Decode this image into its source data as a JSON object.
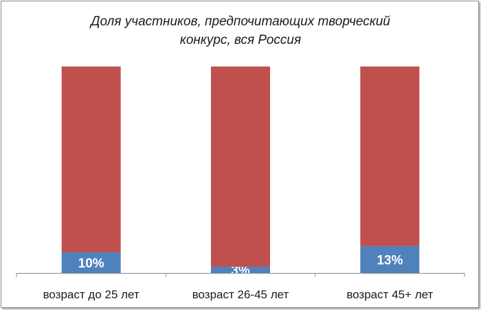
{
  "chart_data": {
    "type": "bar",
    "stacked": true,
    "percent_stacked": true,
    "title_lines": [
      "Доля участников, предпочитающих творческий",
      "конкурс, вся Россия"
    ],
    "categories": [
      "возраст до 25 лет",
      "возраст 26-45 лет",
      "возраст 45+ лет"
    ],
    "series": [
      {
        "values": [
          10,
          3,
          13
        ],
        "color": "#4f81bd",
        "data_labels": [
          "10%",
          "3%",
          "13%"
        ]
      },
      {
        "values": [
          90,
          97,
          87
        ],
        "color": "#c0504d"
      }
    ],
    "ylim": [
      0,
      100
    ],
    "legend": "none",
    "grid": false
  }
}
